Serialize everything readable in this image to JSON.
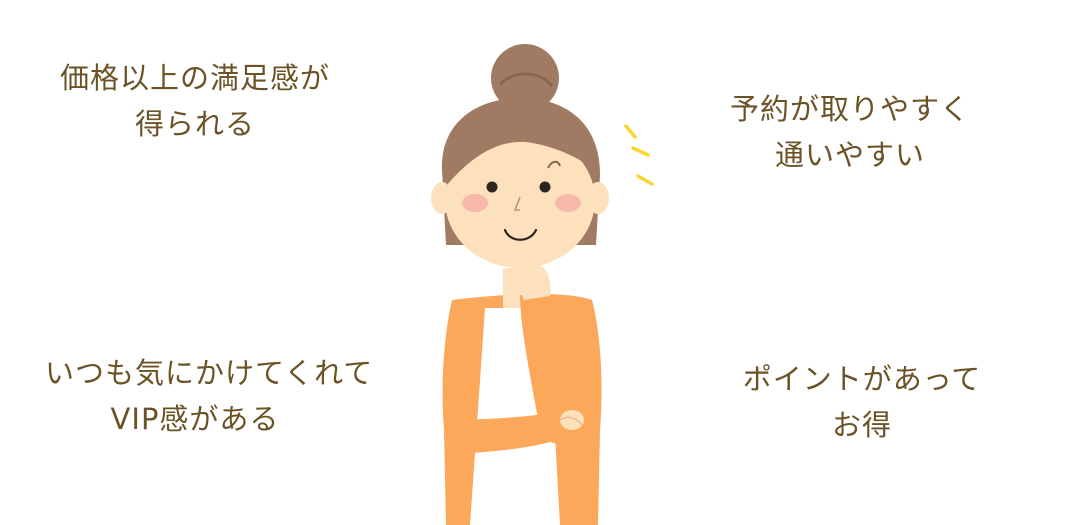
{
  "benefits": {
    "top_left": {
      "line1": "価格以上の満足感が",
      "line2": "得られる"
    },
    "top_right": {
      "line1": "予約が取りやすく",
      "line2": "通いやすい"
    },
    "bottom_left": {
      "line1": "いつも気にかけてくれて",
      "line2": "VIP感がある"
    },
    "bottom_right": {
      "line1": "ポイントがあって",
      "line2": "お得"
    }
  },
  "colors": {
    "text": "#6b5326",
    "hair": "#a17a63",
    "skin": "#fde1bd",
    "cheek": "#f6b9aa",
    "cardigan": "#fca85a",
    "shirt": "#ffffff",
    "sparkle": "#f8d531"
  }
}
